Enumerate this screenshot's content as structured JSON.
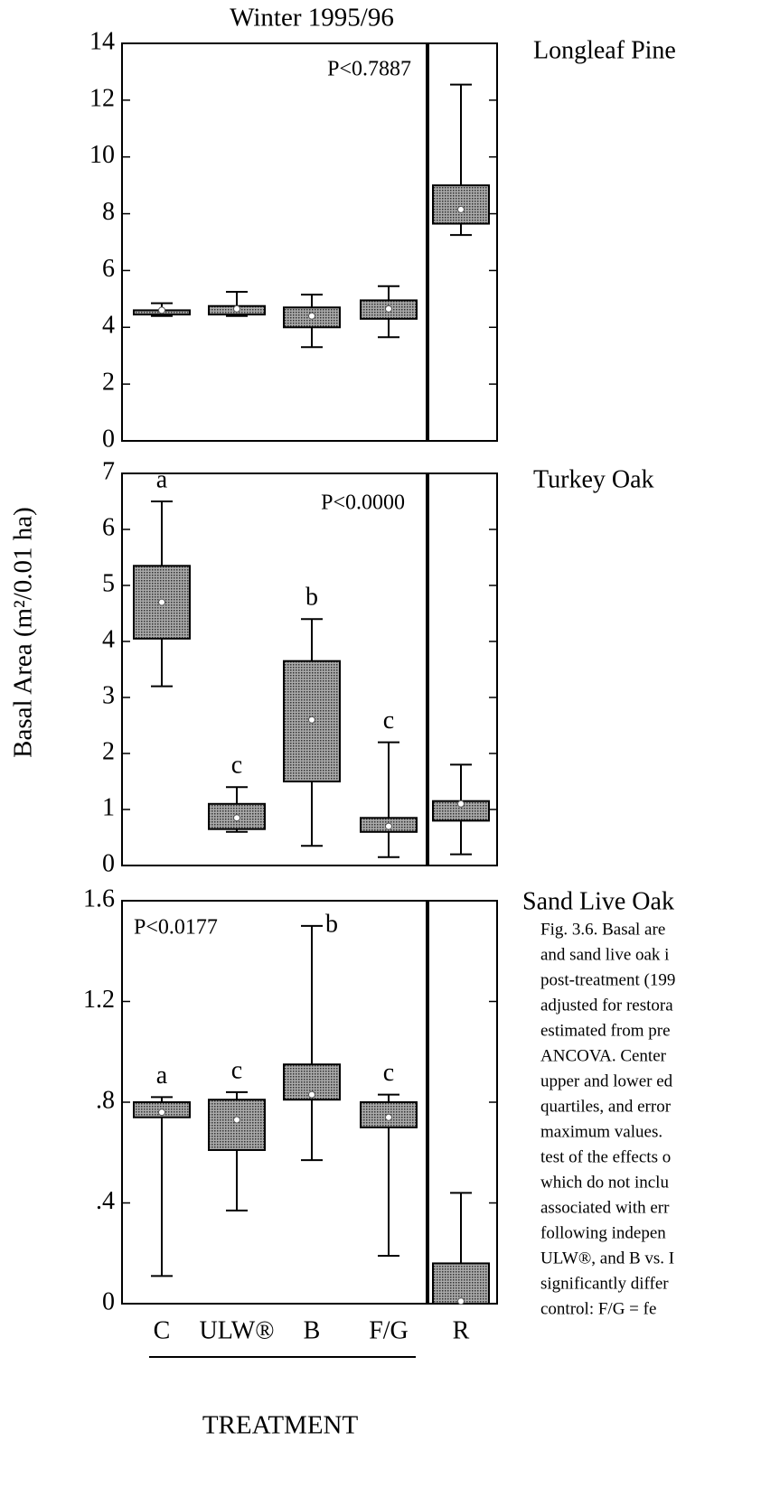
{
  "title": "Winter 1995/96",
  "ylabel": "Basal Area (m²/0.01 ha)",
  "chart_data": [
    {
      "type": "box",
      "title": "Longleaf Pine",
      "annotation": "P<0.7887",
      "ylim": [
        0,
        14
      ],
      "yticks": [
        0,
        2,
        4,
        6,
        8,
        10,
        12,
        14
      ],
      "color": "#6e6e6e",
      "boxes": [
        {
          "min": 4.4,
          "q1": 4.45,
          "q3": 4.6,
          "max": 4.85,
          "mean": 4.6
        },
        {
          "min": 4.4,
          "q1": 4.45,
          "q3": 4.75,
          "max": 5.25,
          "mean": 4.65
        },
        {
          "min": 3.3,
          "q1": 4.0,
          "q3": 4.7,
          "max": 5.15,
          "mean": 4.4
        },
        {
          "min": 3.65,
          "q1": 4.3,
          "q3": 4.95,
          "max": 5.45,
          "mean": 4.65
        },
        {
          "min": 7.25,
          "q1": 7.65,
          "q3": 9.0,
          "max": 12.55,
          "mean": 8.15
        }
      ]
    },
    {
      "type": "box",
      "title": "Turkey Oak",
      "annotation": "P<0.0000",
      "ylim": [
        0,
        7
      ],
      "yticks": [
        0,
        1,
        2,
        3,
        4,
        5,
        6,
        7
      ],
      "color": "#6e6e6e",
      "letters": [
        "a",
        "c",
        "b",
        "c",
        null
      ],
      "boxes": [
        {
          "min": 3.2,
          "q1": 4.05,
          "q3": 5.35,
          "max": 6.5,
          "mean": 4.7
        },
        {
          "min": 0.6,
          "q1": 0.65,
          "q3": 1.1,
          "max": 1.4,
          "mean": 0.85
        },
        {
          "min": 0.35,
          "q1": 1.5,
          "q3": 3.65,
          "max": 4.4,
          "mean": 2.6
        },
        {
          "min": 0.15,
          "q1": 0.6,
          "q3": 0.85,
          "max": 2.2,
          "mean": 0.7
        },
        {
          "min": 0.2,
          "q1": 0.8,
          "q3": 1.15,
          "max": 1.8,
          "mean": 1.1
        }
      ]
    },
    {
      "type": "box",
      "title": "Sand Live Oak",
      "annotation": "P<0.0177",
      "ylim": [
        0,
        1.6
      ],
      "yticks": [
        0,
        {
          "value": 0.4,
          "label": ".4"
        },
        {
          "value": 0.8,
          "label": ".8"
        },
        1.2,
        1.6
      ],
      "color": "#6e6e6e",
      "letters": [
        "a",
        "c",
        "b",
        "c",
        null
      ],
      "categories": [
        "C",
        "ULW®",
        "B",
        "F/G",
        "R"
      ],
      "xlabel": "TREATMENT",
      "boxes": [
        {
          "min": 0.11,
          "q1": 0.74,
          "q3": 0.8,
          "max": 0.82,
          "mean": 0.76
        },
        {
          "min": 0.37,
          "q1": 0.61,
          "q3": 0.81,
          "max": 0.84,
          "mean": 0.73
        },
        {
          "min": 0.57,
          "q1": 0.81,
          "q3": 0.95,
          "max": 1.5,
          "mean": 0.83
        },
        {
          "min": 0.19,
          "q1": 0.7,
          "q3": 0.8,
          "max": 0.83,
          "mean": 0.74
        },
        {
          "min": 0.0,
          "q1": 0.0,
          "q3": 0.16,
          "max": 0.44,
          "mean": 0.01
        }
      ]
    }
  ],
  "caption": [
    "Fig. 3.6.  Basal are",
    "and sand live oak i",
    "post-treatment (199",
    "adjusted for restora",
    "estimated from pre",
    "ANCOVA.  Center",
    "upper and lower ed",
    "quartiles, and error",
    "maximum values.",
    "test of the effects o",
    "which do not inclu",
    "associated with err",
    "following indepen",
    "ULW®, and B vs. I",
    "significantly differ",
    "control: F/G = fe"
  ]
}
